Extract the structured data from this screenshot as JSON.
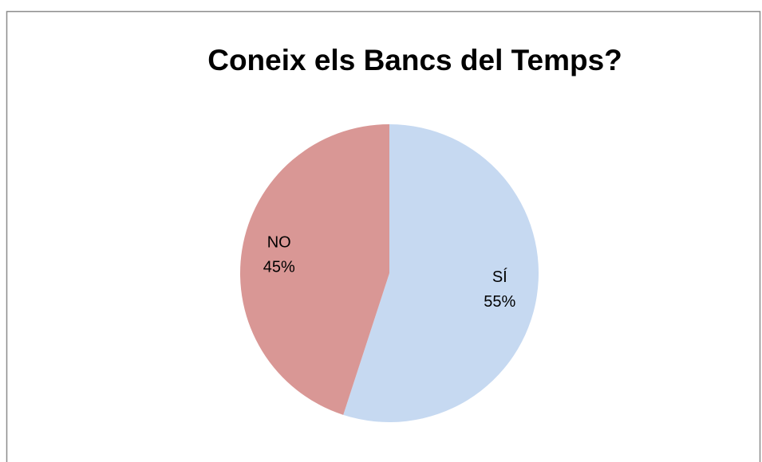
{
  "chart_data": {
    "type": "pie",
    "title": "Coneix els Bancs del Temps?",
    "categories": [
      "SÍ",
      "NO"
    ],
    "values": [
      55,
      45
    ],
    "value_labels": [
      "55%",
      "45%"
    ],
    "colors": [
      "#c6d9f1",
      "#d99795"
    ]
  }
}
